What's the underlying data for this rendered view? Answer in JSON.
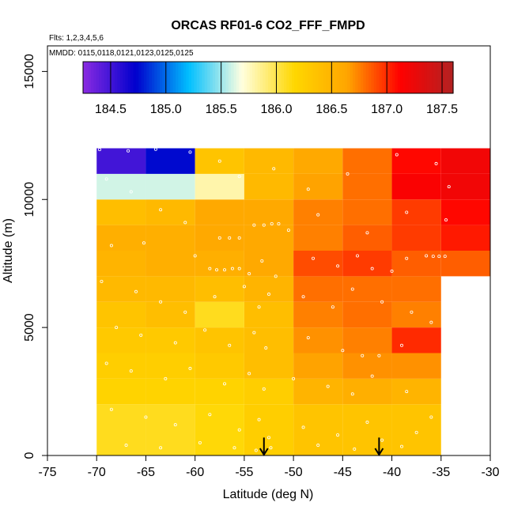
{
  "chart_data": {
    "type": "heatmap",
    "title": "ORCAS RF01-6 CO2_FFF_FMPD",
    "notes": [
      "Flts: 1,2,3,4,5,6",
      "MMDD: 0115,0118,0121,0123,0125,0125"
    ],
    "xlabel": "Latitude (deg N)",
    "ylabel": "Altitude (m)",
    "xlim": [
      -75,
      -30
    ],
    "ylim": [
      0,
      16000
    ],
    "x_ticks": [
      -75,
      -70,
      -65,
      -60,
      -55,
      -50,
      -45,
      -40,
      -35,
      -30
    ],
    "y_ticks": [
      0,
      5000,
      10000,
      15000
    ],
    "grid": false,
    "colorbar": {
      "range": [
        184.25,
        187.6
      ],
      "ticks": [
        184.5,
        185.0,
        185.5,
        186.0,
        186.5,
        187.0,
        187.5
      ],
      "tick_labels": [
        "184.5",
        "185.0",
        "185.5",
        "186.0",
        "186.5",
        "187.0",
        "187.5"
      ],
      "colors": [
        "#8a2be2",
        "#0000cd",
        "#00bfff",
        "#ffffe0",
        "#ffd700",
        "#ffa500",
        "#ff0000",
        "#b22222"
      ],
      "placement": "top"
    },
    "bin_x_edges": [
      -70,
      -65,
      -60,
      -55,
      -50,
      -45,
      -40,
      -35,
      -30
    ],
    "bin_y_edges": [
      0,
      2000,
      3000,
      4000,
      5000,
      6000,
      7000,
      8000,
      9000,
      10000,
      11000,
      12000
    ],
    "cells": [
      [
        186.1,
        186.1,
        186.15,
        186.25,
        186.35,
        186.35,
        186.35,
        null
      ],
      [
        186.2,
        186.2,
        186.2,
        186.25,
        186.5,
        186.55,
        186.5,
        null
      ],
      [
        186.25,
        186.25,
        186.3,
        186.4,
        186.65,
        186.7,
        186.7,
        null
      ],
      [
        186.3,
        186.3,
        186.35,
        186.4,
        186.7,
        186.75,
        187.0,
        null
      ],
      [
        186.35,
        186.4,
        186.1,
        186.4,
        186.75,
        186.8,
        186.75,
        null
      ],
      [
        186.45,
        186.45,
        186.4,
        186.5,
        186.8,
        186.8,
        186.8,
        null
      ],
      [
        186.5,
        186.55,
        186.55,
        186.6,
        186.9,
        186.95,
        186.85,
        186.85
      ],
      [
        186.55,
        186.55,
        186.6,
        186.6,
        186.75,
        186.85,
        186.95,
        187.05
      ],
      [
        186.4,
        186.45,
        186.6,
        186.6,
        186.75,
        186.8,
        186.95,
        187.1
      ],
      [
        185.6,
        185.6,
        185.8,
        186.45,
        186.65,
        186.8,
        187.15,
        187.2
      ],
      [
        184.5,
        184.75,
        186.35,
        186.45,
        186.6,
        186.8,
        187.1,
        187.2
      ]
    ],
    "observations": [
      {
        "lat": -69.7,
        "alt": 11950
      },
      {
        "lat": -66.8,
        "alt": 11900
      },
      {
        "lat": -64.0,
        "alt": 11960
      },
      {
        "lat": -60.5,
        "alt": 11850
      },
      {
        "lat": -57.5,
        "alt": 11500
      },
      {
        "lat": -55.5,
        "alt": 10900
      },
      {
        "lat": -52.0,
        "alt": 11200
      },
      {
        "lat": -48.5,
        "alt": 10400
      },
      {
        "lat": -44.5,
        "alt": 11000
      },
      {
        "lat": -39.5,
        "alt": 11750
      },
      {
        "lat": -35.5,
        "alt": 11400
      },
      {
        "lat": -34.2,
        "alt": 10500
      },
      {
        "lat": -69.0,
        "alt": 10800
      },
      {
        "lat": -66.5,
        "alt": 10300
      },
      {
        "lat": -63.5,
        "alt": 9600
      },
      {
        "lat": -61.0,
        "alt": 9100
      },
      {
        "lat": -57.5,
        "alt": 8500
      },
      {
        "lat": -56.5,
        "alt": 8500
      },
      {
        "lat": -55.5,
        "alt": 8500
      },
      {
        "lat": -54.0,
        "alt": 9000
      },
      {
        "lat": -53.0,
        "alt": 9000
      },
      {
        "lat": -52.2,
        "alt": 9050
      },
      {
        "lat": -51.5,
        "alt": 9050
      },
      {
        "lat": -50.5,
        "alt": 8800
      },
      {
        "lat": -47.5,
        "alt": 9400
      },
      {
        "lat": -42.5,
        "alt": 8700
      },
      {
        "lat": -38.5,
        "alt": 9500
      },
      {
        "lat": -34.5,
        "alt": 9200
      },
      {
        "lat": -68.5,
        "alt": 8200
      },
      {
        "lat": -65.2,
        "alt": 8300
      },
      {
        "lat": -60.0,
        "alt": 7800
      },
      {
        "lat": -58.5,
        "alt": 7300
      },
      {
        "lat": -57.8,
        "alt": 7250
      },
      {
        "lat": -57.0,
        "alt": 7250
      },
      {
        "lat": -56.2,
        "alt": 7300
      },
      {
        "lat": -55.5,
        "alt": 7300
      },
      {
        "lat": -54.5,
        "alt": 7100
      },
      {
        "lat": -53.2,
        "alt": 7600
      },
      {
        "lat": -51.8,
        "alt": 7000
      },
      {
        "lat": -48.0,
        "alt": 7700
      },
      {
        "lat": -45.5,
        "alt": 7400
      },
      {
        "lat": -43.5,
        "alt": 7800
      },
      {
        "lat": -42.0,
        "alt": 7300
      },
      {
        "lat": -40.0,
        "alt": 7200
      },
      {
        "lat": -38.5,
        "alt": 7700
      },
      {
        "lat": -36.5,
        "alt": 7800
      },
      {
        "lat": -35.8,
        "alt": 7780
      },
      {
        "lat": -35.2,
        "alt": 7780
      },
      {
        "lat": -34.6,
        "alt": 7780
      },
      {
        "lat": -69.5,
        "alt": 6800
      },
      {
        "lat": -66.0,
        "alt": 6400
      },
      {
        "lat": -63.5,
        "alt": 6000
      },
      {
        "lat": -61.0,
        "alt": 5600
      },
      {
        "lat": -58.0,
        "alt": 6200
      },
      {
        "lat": -55.0,
        "alt": 6600
      },
      {
        "lat": -53.5,
        "alt": 5800
      },
      {
        "lat": -52.5,
        "alt": 6300
      },
      {
        "lat": -49.0,
        "alt": 6200
      },
      {
        "lat": -46.0,
        "alt": 5800
      },
      {
        "lat": -44.0,
        "alt": 6500
      },
      {
        "lat": -41.0,
        "alt": 6000
      },
      {
        "lat": -38.0,
        "alt": 5600
      },
      {
        "lat": -36.0,
        "alt": 5200
      },
      {
        "lat": -68.0,
        "alt": 5000
      },
      {
        "lat": -65.5,
        "alt": 4700
      },
      {
        "lat": -62.0,
        "alt": 4400
      },
      {
        "lat": -59.0,
        "alt": 4900
      },
      {
        "lat": -56.5,
        "alt": 4300
      },
      {
        "lat": -54.0,
        "alt": 4800
      },
      {
        "lat": -52.8,
        "alt": 4200
      },
      {
        "lat": -48.5,
        "alt": 4600
      },
      {
        "lat": -45.0,
        "alt": 4100
      },
      {
        "lat": -43.0,
        "alt": 3900
      },
      {
        "lat": -41.3,
        "alt": 3900
      },
      {
        "lat": -39.0,
        "alt": 4300
      },
      {
        "lat": -69.0,
        "alt": 3600
      },
      {
        "lat": -66.5,
        "alt": 3300
      },
      {
        "lat": -63.0,
        "alt": 3000
      },
      {
        "lat": -60.5,
        "alt": 3400
      },
      {
        "lat": -57.0,
        "alt": 2800
      },
      {
        "lat": -54.5,
        "alt": 3200
      },
      {
        "lat": -53.0,
        "alt": 2600
      },
      {
        "lat": -50.0,
        "alt": 3000
      },
      {
        "lat": -46.5,
        "alt": 2700
      },
      {
        "lat": -44.0,
        "alt": 2400
      },
      {
        "lat": -42.0,
        "alt": 3100
      },
      {
        "lat": -38.5,
        "alt": 2500
      },
      {
        "lat": -68.5,
        "alt": 1800
      },
      {
        "lat": -65.0,
        "alt": 1500
      },
      {
        "lat": -62.0,
        "alt": 1200
      },
      {
        "lat": -58.5,
        "alt": 1600
      },
      {
        "lat": -55.5,
        "alt": 1000
      },
      {
        "lat": -53.5,
        "alt": 1400
      },
      {
        "lat": -52.5,
        "alt": 700
      },
      {
        "lat": -49.0,
        "alt": 1100
      },
      {
        "lat": -45.5,
        "alt": 800
      },
      {
        "lat": -42.5,
        "alt": 1300
      },
      {
        "lat": -41.0,
        "alt": 600
      },
      {
        "lat": -37.5,
        "alt": 900
      },
      {
        "lat": -36.0,
        "alt": 1500
      },
      {
        "lat": -67.0,
        "alt": 400
      },
      {
        "lat": -63.5,
        "alt": 300
      },
      {
        "lat": -59.5,
        "alt": 500
      },
      {
        "lat": -56.0,
        "alt": 300
      },
      {
        "lat": -53.8,
        "alt": 200
      },
      {
        "lat": -52.3,
        "alt": 300
      },
      {
        "lat": -47.5,
        "alt": 400
      },
      {
        "lat": -43.8,
        "alt": 250
      },
      {
        "lat": -39.0,
        "alt": 350
      }
    ],
    "markers": [
      {
        "type": "arrow-down",
        "lat": -53.0,
        "alt_top": 700,
        "alt_bottom": 0
      },
      {
        "type": "arrow-down",
        "lat": -41.3,
        "alt_top": 700,
        "alt_bottom": 0
      }
    ]
  }
}
